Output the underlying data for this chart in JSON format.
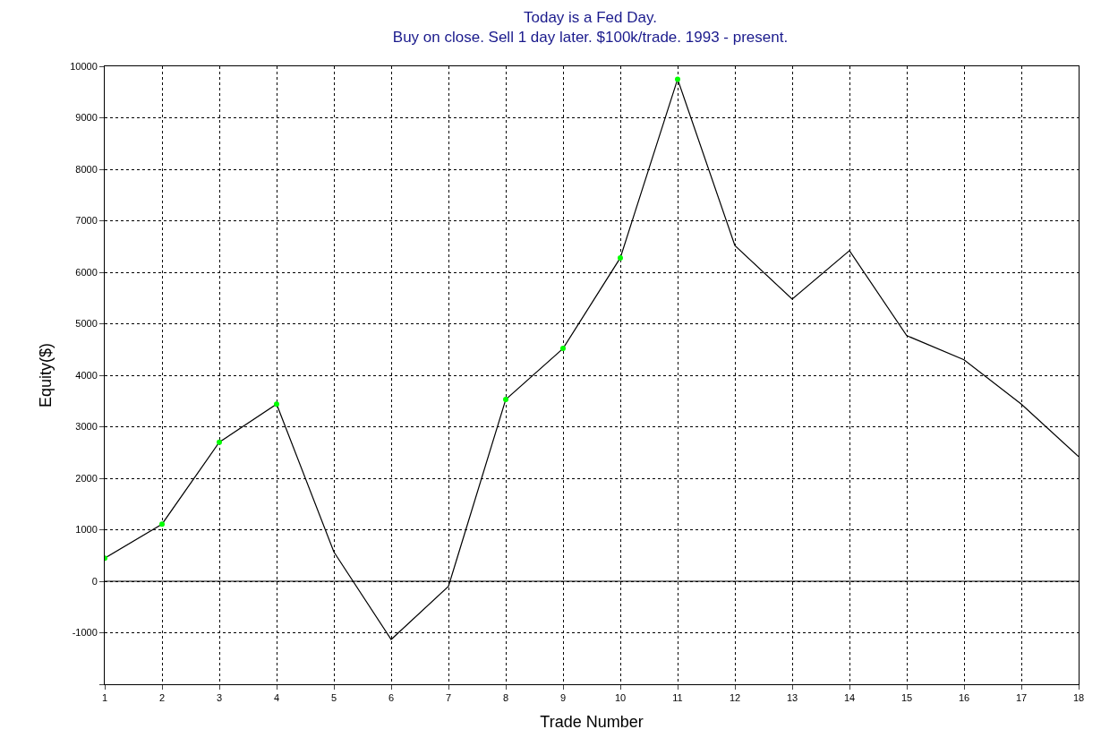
{
  "chart_data": {
    "type": "line",
    "title": "Today is a Fed Day.\nBuy on close. Sell 1 day later. $100k/trade. 1993 - present.",
    "xlabel": "Trade Number",
    "ylabel": "Equity($)",
    "x": [
      1,
      2,
      3,
      4,
      5,
      6,
      7,
      8,
      9,
      10,
      11,
      12,
      13,
      14,
      15,
      16,
      17,
      18
    ],
    "series": [
      {
        "color": "#000000",
        "marker": "none",
        "values": [
          450,
          1110,
          2700,
          3440,
          570,
          -1130,
          -100,
          3530,
          4520,
          6280,
          9750,
          6520,
          5480,
          6420,
          4770,
          4300,
          3440,
          2420
        ]
      },
      {
        "type": "scatter",
        "color": "#00ff00",
        "marker": "circle",
        "x": [
          1,
          2,
          3,
          4,
          8,
          9,
          10,
          11
        ],
        "values": [
          450,
          1110,
          2700,
          3440,
          3530,
          4520,
          6280,
          9750
        ]
      }
    ],
    "xlim": [
      1,
      18
    ],
    "xticks": [
      1,
      2,
      3,
      4,
      5,
      6,
      7,
      8,
      9,
      10,
      11,
      12,
      13,
      14,
      15,
      16,
      17,
      18
    ],
    "ylim": [
      -2000,
      10000
    ],
    "yticks": [
      {
        "value": -2000,
        "label": null
      },
      -1000,
      0,
      1000,
      2000,
      3000,
      4000,
      5000,
      6000,
      7000,
      8000,
      9000,
      10000
    ],
    "grid": true,
    "legend": false,
    "ref_lines": [
      {
        "axis": "y",
        "value": 0,
        "color": "#000000",
        "line_style": "solid"
      }
    ]
  }
}
